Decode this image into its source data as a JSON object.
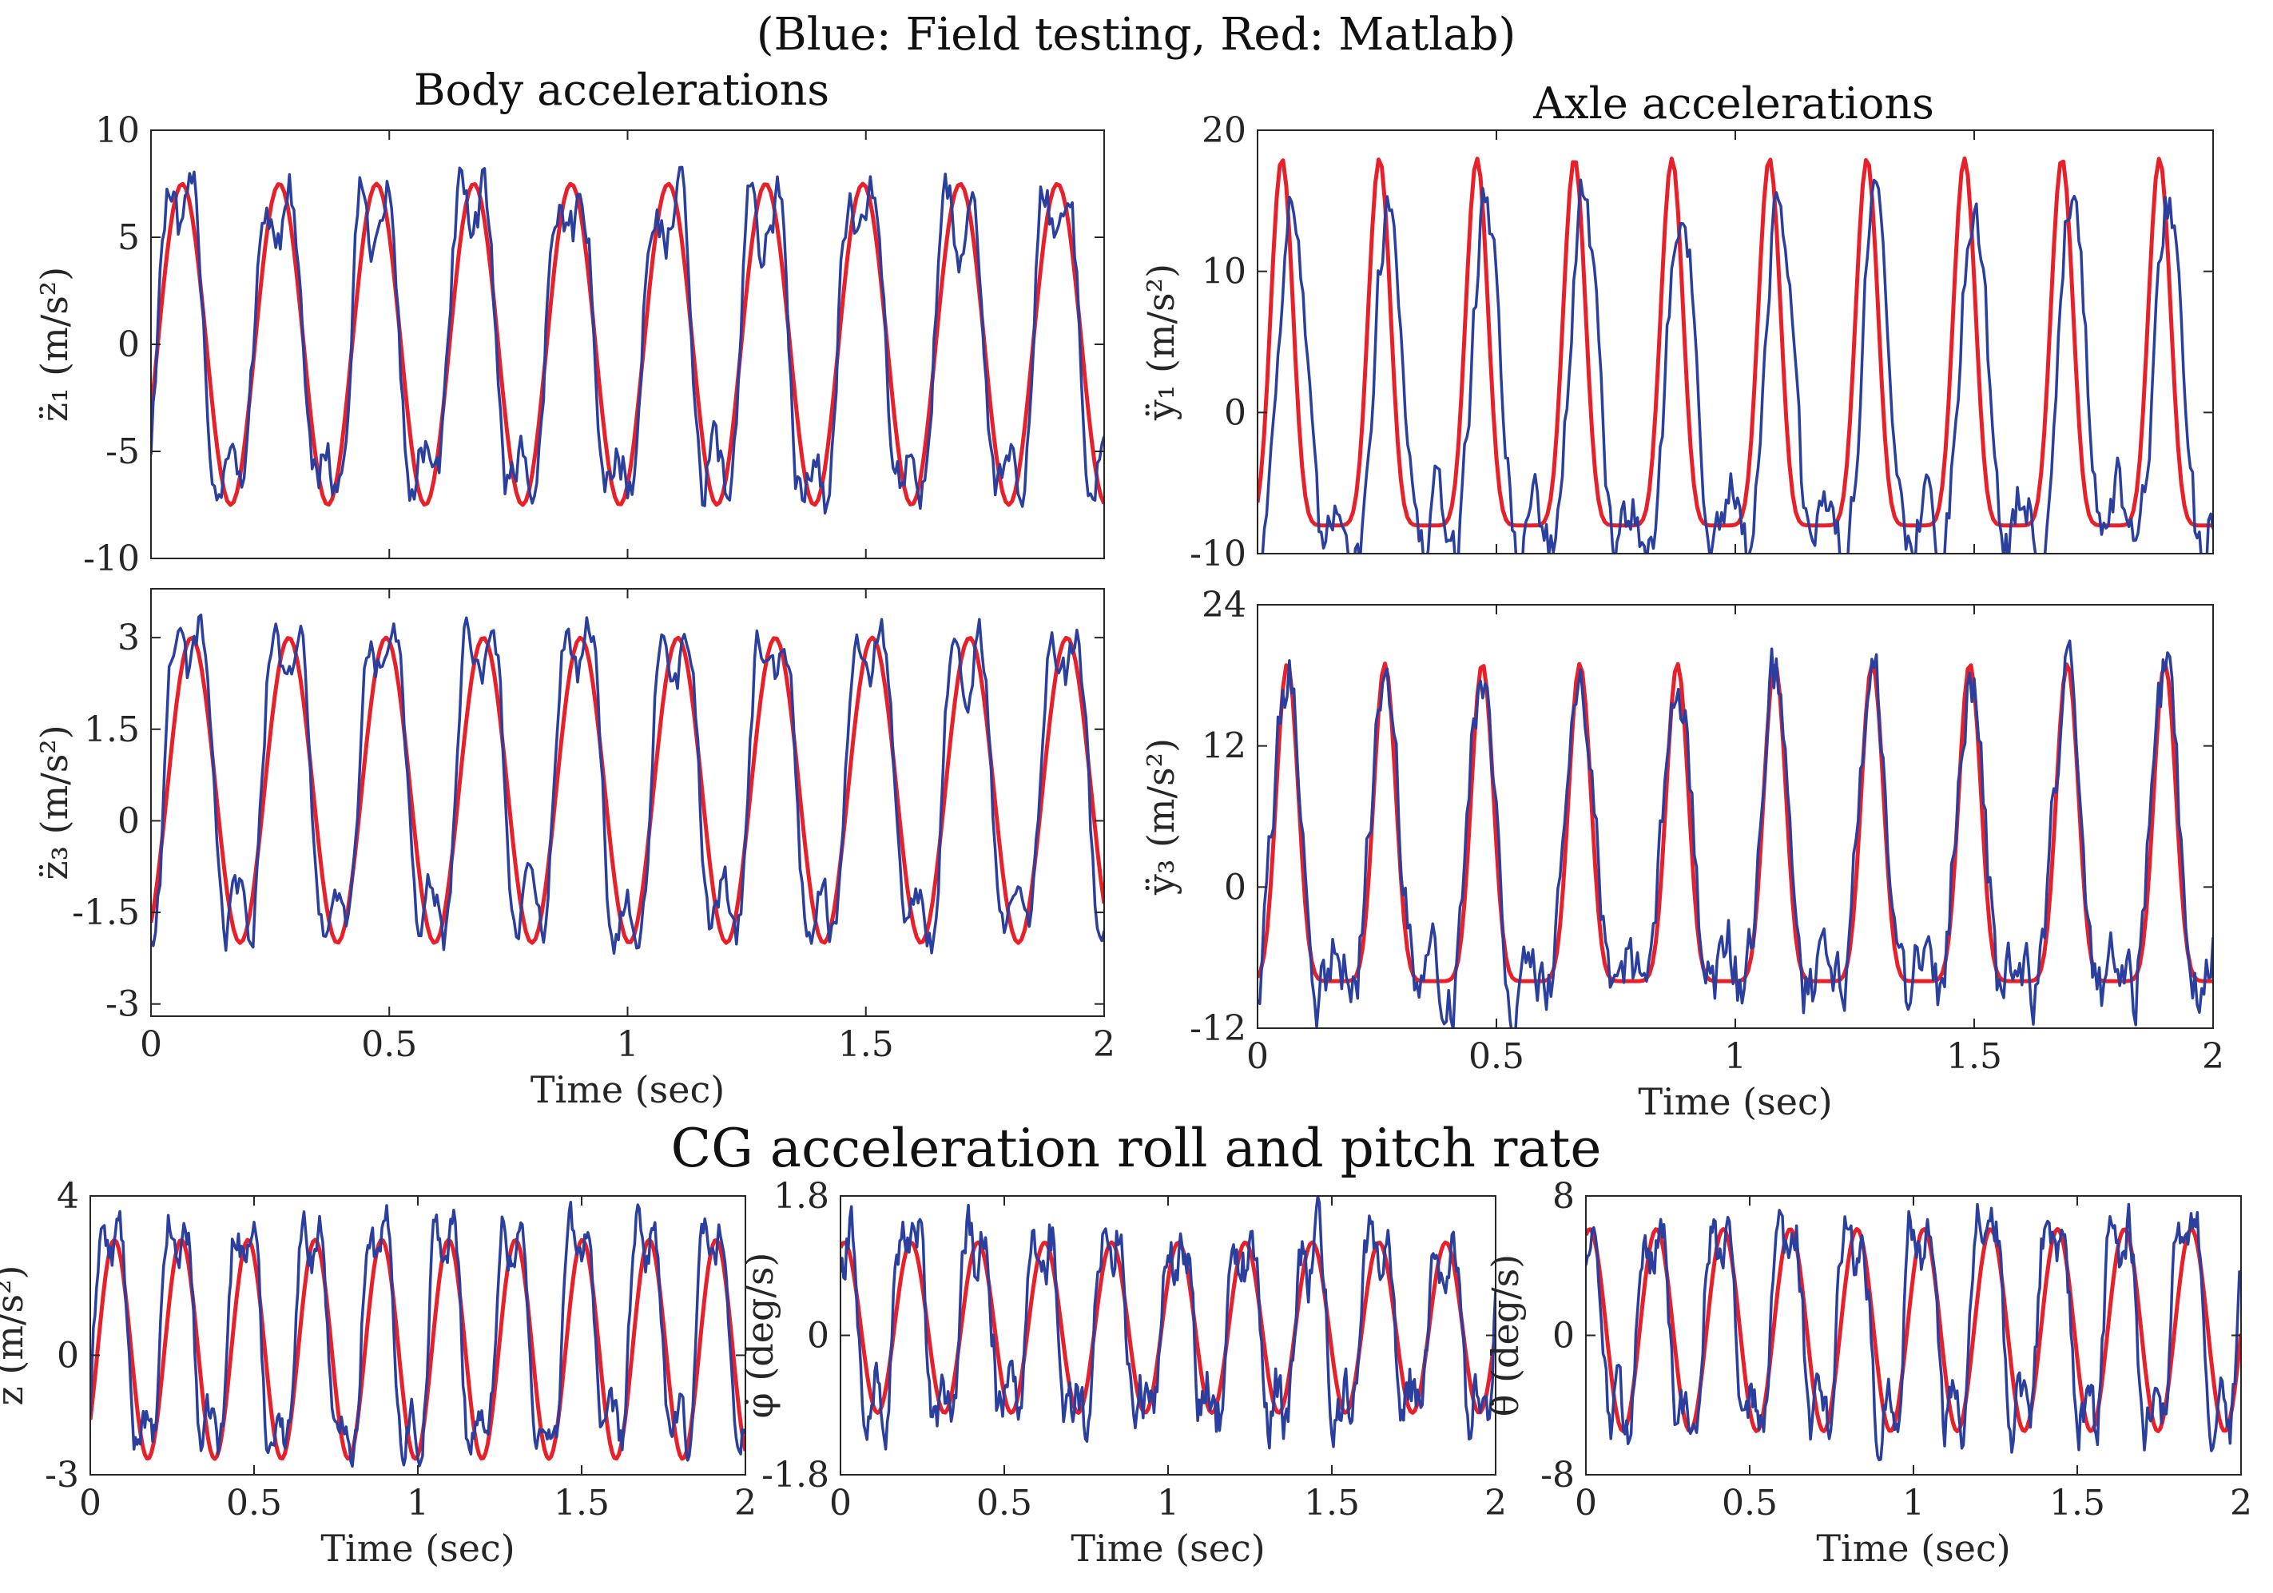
{
  "figure": {
    "legend_text": "(Blue: Field testing, Red: Matlab)",
    "section_body": "Body accelerations",
    "section_axle": "Axle accelerations",
    "section_cg": "CG acceleration  roll and pitch rate",
    "colors": {
      "field": "#2b3f9e",
      "matlab": "#e8202a"
    }
  },
  "chart_data": [
    {
      "id": "z1",
      "type": "line",
      "ylabel": "z̈₁ (m/s²)",
      "xlabel": "",
      "xlim": [
        0,
        2
      ],
      "ylim": [
        -10,
        10
      ],
      "xticks": [
        0,
        0.5,
        1,
        1.5,
        2
      ],
      "xtick_labels": [],
      "yticks": [
        -10,
        -5,
        0,
        5,
        10
      ],
      "ytick_labels": [
        "-10",
        "-5",
        "0",
        "5",
        "10"
      ],
      "series": [
        {
          "name": "Matlab",
          "color": "#e8202a",
          "model": "sine",
          "amplitude": 7.5,
          "frequency_hz": 4.9,
          "phase_deg": -25
        },
        {
          "name": "Field testing",
          "color": "#2b3f9e",
          "model": "noisy",
          "amplitude": 7.2,
          "frequency_hz": 4.9,
          "phase_deg": -20,
          "noise": 1.6
        }
      ]
    },
    {
      "id": "y1",
      "type": "line",
      "ylabel": "ÿ₁ (m/s²)",
      "xlabel": "",
      "xlim": [
        0,
        2
      ],
      "ylim": [
        -10,
        20
      ],
      "xticks": [
        0,
        0.5,
        1,
        1.5,
        2
      ],
      "xtick_labels": [],
      "yticks": [
        -10,
        0,
        10,
        20
      ],
      "ytick_labels": [
        "-10",
        "0",
        "10",
        "20"
      ],
      "series": [
        {
          "name": "Matlab",
          "color": "#e8202a",
          "model": "peaky",
          "low": -8,
          "high": 18,
          "frequency_hz": 4.9,
          "phase_deg": 0
        },
        {
          "name": "Field testing",
          "color": "#2b3f9e",
          "model": "peaky-noisy",
          "low": -8,
          "high": 17,
          "frequency_hz": 4.9,
          "phase_deg": -35,
          "noise": 2.5
        }
      ]
    },
    {
      "id": "z3",
      "type": "line",
      "ylabel": "z̈₃ (m/s²)",
      "xlabel": "Time (sec)",
      "xlim": [
        0,
        2
      ],
      "ylim": [
        -3.2,
        3.8
      ],
      "xticks": [
        0,
        0.5,
        1,
        1.5,
        2
      ],
      "xtick_labels": [
        "0",
        "0.5",
        "1",
        "1.5",
        "2"
      ],
      "yticks": [
        -3,
        -1.5,
        0,
        1.5,
        3
      ],
      "ytick_labels": [
        "-3",
        "-1.5",
        "0",
        "1.5",
        "3"
      ],
      "series": [
        {
          "name": "Matlab",
          "color": "#e8202a",
          "model": "sine",
          "amplitude": 2.5,
          "offset": 0.5,
          "frequency_hz": 4.9,
          "phase_deg": -60
        },
        {
          "name": "Field testing",
          "color": "#2b3f9e",
          "model": "noisy",
          "amplitude": 2.6,
          "offset": 0.6,
          "frequency_hz": 4.9,
          "phase_deg": -50,
          "noise": 0.45
        }
      ]
    },
    {
      "id": "y3",
      "type": "line",
      "ylabel": "ÿ₃ (m/s²)",
      "xlabel": "Time (sec)",
      "xlim": [
        0,
        2
      ],
      "ylim": [
        -12,
        24
      ],
      "xticks": [
        0,
        0.5,
        1,
        1.5,
        2
      ],
      "xtick_labels": [
        "0",
        "0.5",
        "1",
        "1.5",
        "2"
      ],
      "yticks": [
        -12,
        0,
        12,
        24
      ],
      "ytick_labels": [
        "-12",
        "0",
        "12",
        "24"
      ],
      "series": [
        {
          "name": "Matlab",
          "color": "#e8202a",
          "model": "peaky",
          "low": -8,
          "high": 19,
          "frequency_hz": 4.9,
          "phase_deg": -20
        },
        {
          "name": "Field testing",
          "color": "#2b3f9e",
          "model": "peaky-noisy",
          "low": -7,
          "high": 20,
          "frequency_hz": 4.9,
          "phase_deg": -20,
          "noise": 3.5
        }
      ]
    },
    {
      "id": "zcg",
      "type": "line",
      "ylabel": "z̈ (m/s²)",
      "xlabel": "Time (sec)",
      "xlim": [
        0,
        2
      ],
      "ylim": [
        -3,
        4
      ],
      "xticks": [
        0,
        0.5,
        1,
        1.5,
        2
      ],
      "xtick_labels": [
        "0",
        "0.5",
        "1",
        "1.5",
        "2"
      ],
      "yticks": [
        -3,
        0,
        4
      ],
      "ytick_labels": [
        "-3",
        "0",
        "4"
      ],
      "series": [
        {
          "name": "Matlab",
          "color": "#e8202a",
          "model": "sine",
          "amplitude": 2.75,
          "offset": 0.15,
          "frequency_hz": 4.9,
          "phase_deg": -40
        },
        {
          "name": "Field testing",
          "color": "#2b3f9e",
          "model": "noisy",
          "amplitude": 2.9,
          "offset": 0.5,
          "frequency_hz": 4.9,
          "phase_deg": -20,
          "noise": 0.6
        }
      ]
    },
    {
      "id": "phi",
      "type": "line",
      "ylabel": "φ̇ (deg/s)",
      "xlabel": "Time (sec)",
      "xlim": [
        0,
        2
      ],
      "ylim": [
        -1.8,
        1.8
      ],
      "xticks": [
        0,
        0.5,
        1,
        1.5,
        2
      ],
      "xtick_labels": [
        "0",
        "0.5",
        "1",
        "1.5",
        "2"
      ],
      "yticks": [
        -1.8,
        0,
        1.8
      ],
      "ytick_labels": [
        "-1.8",
        "0",
        "1.8"
      ],
      "series": [
        {
          "name": "Matlab",
          "color": "#e8202a",
          "model": "sine",
          "amplitude": 1.1,
          "offset": 0.1,
          "frequency_hz": 4.9,
          "phase_deg": 70
        },
        {
          "name": "Field testing",
          "color": "#2b3f9e",
          "model": "noisy",
          "amplitude": 1.2,
          "offset": 0.1,
          "frequency_hz": 4.9,
          "phase_deg": 80,
          "noise": 0.45
        }
      ]
    },
    {
      "id": "theta",
      "type": "line",
      "ylabel": "θ̇ (deg/s)",
      "xlabel": "Time (sec)",
      "xlim": [
        0,
        2
      ],
      "ylim": [
        -8,
        8
      ],
      "xticks": [
        0,
        0.5,
        1,
        1.5,
        2
      ],
      "xtick_labels": [
        "0",
        "0.5",
        "1",
        "1.5",
        "2"
      ],
      "yticks": [
        -8,
        0,
        8
      ],
      "ytick_labels": [
        "-8",
        "0",
        "8"
      ],
      "series": [
        {
          "name": "Matlab",
          "color": "#e8202a",
          "model": "sine",
          "amplitude": 5.8,
          "offset": 0.3,
          "frequency_hz": 4.9,
          "phase_deg": 70
        },
        {
          "name": "Field testing",
          "color": "#2b3f9e",
          "model": "noisy",
          "amplitude": 6.0,
          "offset": 0.5,
          "frequency_hz": 4.9,
          "phase_deg": 90,
          "noise": 1.8
        }
      ]
    }
  ]
}
